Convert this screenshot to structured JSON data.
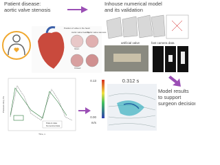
{
  "patient": {
    "line1": "Patient disease:",
    "line2": "aortic valve stenosis"
  },
  "heart": {
    "position": "Position of valve in the heart",
    "healthy": "Aortic valve healthy",
    "stenosis": "Aortic valve stenosis",
    "open": "Open",
    "closed": "Closed"
  },
  "model": {
    "line1": "Inhouse numerical model",
    "line2": "and its validation"
  },
  "validation": {
    "valve": "artificial valve",
    "camera": "fast camera data"
  },
  "plot": {
    "ylabel": "Pressure drop, Pa",
    "xlabel": "Time, s",
    "legend": [
      "Patient data",
      "Numerical data"
    ]
  },
  "field": {
    "time": "0.312 s",
    "cmax": "0.13",
    "cmin": "0.00",
    "unit": "m/s"
  },
  "result": {
    "line1": "Model results",
    "line2": "to support",
    "line3": "surgeon decision"
  }
}
